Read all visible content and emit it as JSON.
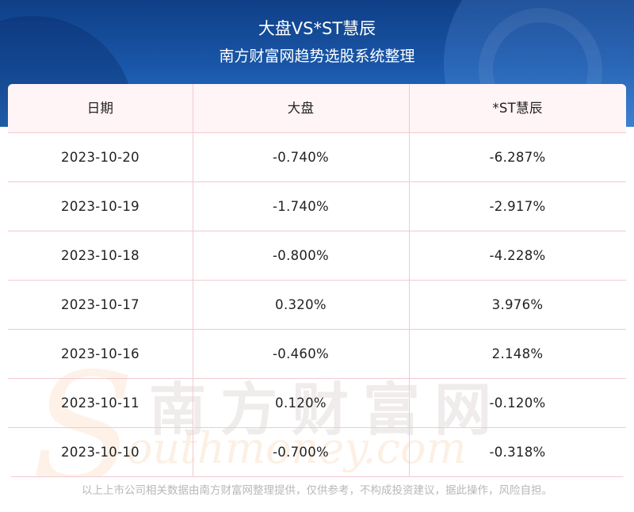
{
  "header": {
    "title": "大盘VS*ST慧辰",
    "subtitle": "南方财富网趋势选股系统整理"
  },
  "table": {
    "columns": [
      "日期",
      "大盘",
      "*ST慧辰"
    ],
    "rows": [
      [
        "2023-10-20",
        "-0.740%",
        "-6.287%"
      ],
      [
        "2023-10-19",
        "-1.740%",
        "-2.917%"
      ],
      [
        "2023-10-18",
        "-0.800%",
        "-4.228%"
      ],
      [
        "2023-10-17",
        "0.320%",
        "3.976%"
      ],
      [
        "2023-10-16",
        "-0.460%",
        "2.148%"
      ],
      [
        "2023-10-11",
        "0.120%",
        "-0.120%"
      ],
      [
        "2023-10-10",
        "-0.700%",
        "-0.318%"
      ]
    ]
  },
  "watermark": {
    "cn": "南方财富网",
    "en": "outhmoney.com",
    "s": "S"
  },
  "footer": "以上上市公司相关数据由南方财富网整理提供，仅供参考，不构成投资建议，据此操作，风险自担。",
  "colors": {
    "header_bg": "#1a58aa",
    "grid_line": "#f2c9d1",
    "header_row_bg": "#fff4f6"
  }
}
